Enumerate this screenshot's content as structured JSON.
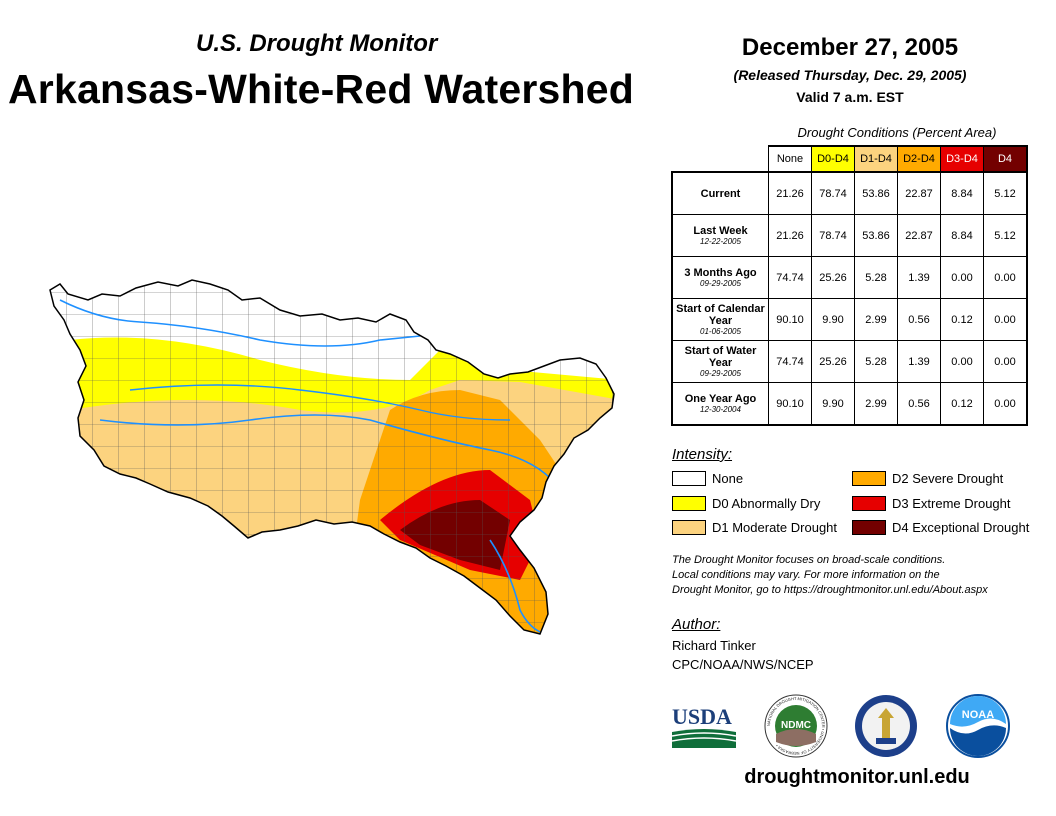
{
  "header": {
    "subtitle": "U.S. Drought Monitor",
    "title": "Arkansas-White-Red Watershed",
    "date": "December 27, 2005",
    "released": "(Released Thursday, Dec. 29, 2005)",
    "valid": "Valid 7 a.m. EST"
  },
  "table": {
    "caption": "Drought Conditions (Percent Area)",
    "columns": [
      "None",
      "D0-D4",
      "D1-D4",
      "D2-D4",
      "D3-D4",
      "D4"
    ],
    "column_colors": [
      "#ffffff",
      "#ffff00",
      "#fcd37f",
      "#ffaa00",
      "#e60000",
      "#730000"
    ],
    "rows": [
      {
        "label": "Current",
        "date": "",
        "values": [
          "21.26",
          "78.74",
          "53.86",
          "22.87",
          "8.84",
          "5.12"
        ]
      },
      {
        "label": "Last Week",
        "date": "12-22-2005",
        "values": [
          "21.26",
          "78.74",
          "53.86",
          "22.87",
          "8.84",
          "5.12"
        ]
      },
      {
        "label": "3 Months Ago",
        "date": "09-29-2005",
        "values": [
          "74.74",
          "25.26",
          "5.28",
          "1.39",
          "0.00",
          "0.00"
        ]
      },
      {
        "label": "Start of Calendar Year",
        "date": "01-06-2005",
        "values": [
          "90.10",
          "9.90",
          "2.99",
          "0.56",
          "0.12",
          "0.00"
        ]
      },
      {
        "label": "Start of Water Year",
        "date": "09-29-2005",
        "values": [
          "74.74",
          "25.26",
          "5.28",
          "1.39",
          "0.00",
          "0.00"
        ]
      },
      {
        "label": "One Year Ago",
        "date": "12-30-2004",
        "values": [
          "90.10",
          "9.90",
          "2.99",
          "0.56",
          "0.12",
          "0.00"
        ]
      }
    ]
  },
  "legend": {
    "title": "Intensity:",
    "items": [
      {
        "label": "None",
        "color": "#ffffff"
      },
      {
        "label": "D0 Abnormally Dry",
        "color": "#ffff00"
      },
      {
        "label": "D1 Moderate Drought",
        "color": "#fcd37f"
      },
      {
        "label": "D2 Severe Drought",
        "color": "#ffaa00"
      },
      {
        "label": "D3 Extreme Drought",
        "color": "#e60000"
      },
      {
        "label": "D4 Exceptional Drought",
        "color": "#730000"
      }
    ]
  },
  "note": {
    "line1": "The Drought Monitor focuses on broad-scale conditions.",
    "line2": "Local conditions may vary. For more information on the",
    "line3": "Drought Monitor, go to https://droughtmonitor.unl.edu/About.aspx"
  },
  "author": {
    "label": "Author:",
    "name": "Richard Tinker",
    "org": "CPC/NOAA/NWS/NCEP"
  },
  "logos": {
    "usda": "USDA",
    "ndmc": "NDMC",
    "ndmc_ring": "NATIONAL DROUGHT MITIGATION CENTER • UNIVERSITY OF NEBRASKA •",
    "noaa": "NOAA"
  },
  "website": "droughtmonitor.unl.edu"
}
